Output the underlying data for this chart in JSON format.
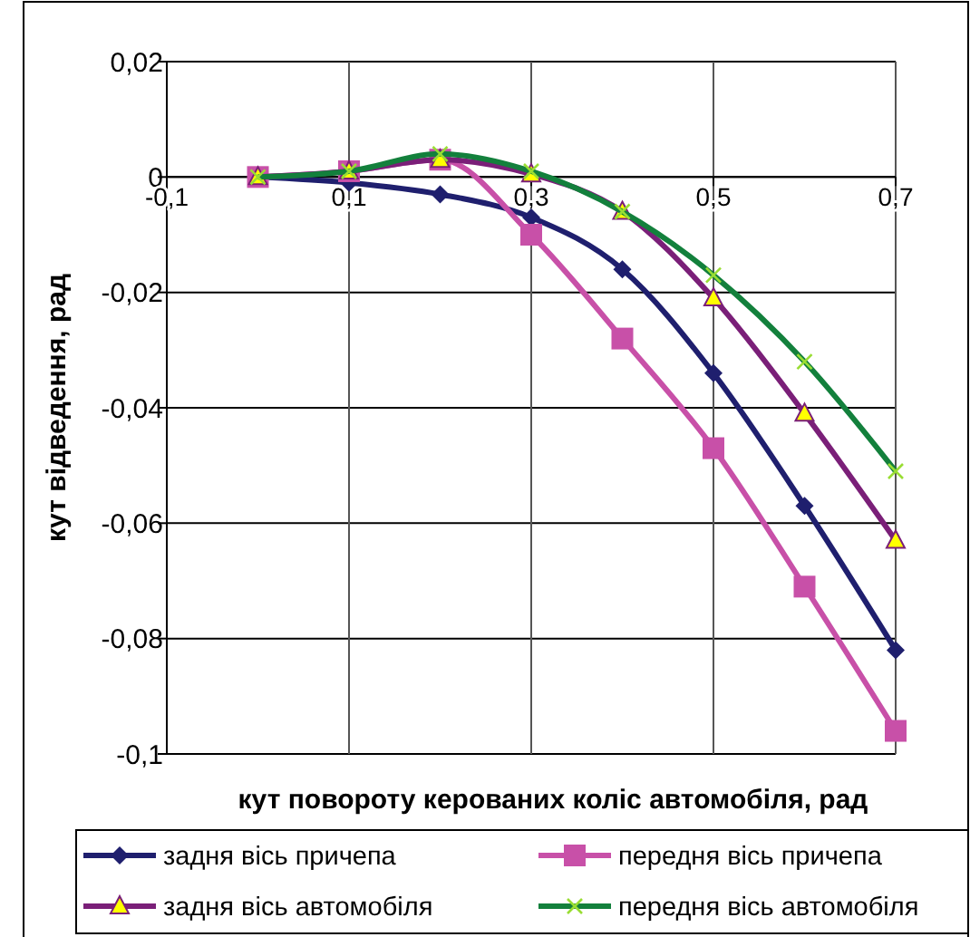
{
  "chart_data": {
    "type": "line",
    "xlabel": "кут повороту керованих коліс автомобіля, рад",
    "ylabel": "кут відведення, рад",
    "x": [
      0,
      0.1,
      0.2,
      0.3,
      0.4,
      0.5,
      0.6,
      0.7
    ],
    "xlim": [
      -0.1,
      0.7
    ],
    "xticks": [
      {
        "value": -0.1,
        "label": "-0,1"
      },
      {
        "value": 0.1,
        "label": "0,1"
      },
      {
        "value": 0.3,
        "label": "0,3"
      },
      {
        "value": 0.5,
        "label": "0,5"
      },
      {
        "value": 0.7,
        "label": "0,7"
      }
    ],
    "ylim": [
      -0.1,
      0.02
    ],
    "yticks": [
      {
        "value": -0.1,
        "label": "-0,1"
      },
      {
        "value": -0.08,
        "label": "-0,08"
      },
      {
        "value": -0.06,
        "label": "-0,06"
      },
      {
        "value": -0.04,
        "label": "-0,04"
      },
      {
        "value": -0.02,
        "label": "-0,02"
      },
      {
        "value": 0,
        "label": "0"
      },
      {
        "value": 0.02,
        "label": "0,02"
      }
    ],
    "grid": true,
    "legend": "bottom",
    "series": [
      {
        "name": "задня вісь причепа",
        "color": "#1f1f6e",
        "marker": "diamond",
        "values": [
          0,
          -0.001,
          -0.003,
          -0.007,
          -0.016,
          -0.034,
          -0.057,
          -0.082
        ]
      },
      {
        "name": "передня вісь причепа",
        "color": "#c850a8",
        "marker": "square",
        "values": [
          0,
          0.001,
          0.003,
          -0.01,
          -0.028,
          -0.047,
          -0.071,
          -0.096
        ]
      },
      {
        "name": "задня вісь автомобіля",
        "color": "#7a1f78",
        "marker": "triangle",
        "values": [
          0,
          0.001,
          0.003,
          0.0005,
          -0.006,
          -0.021,
          -0.041,
          -0.063
        ]
      },
      {
        "name": "передня вісь автомобіля",
        "color": "#13803c",
        "marker": "cross",
        "values": [
          0,
          0.001,
          0.004,
          0.001,
          -0.006,
          -0.017,
          -0.032,
          -0.051
        ]
      }
    ]
  }
}
